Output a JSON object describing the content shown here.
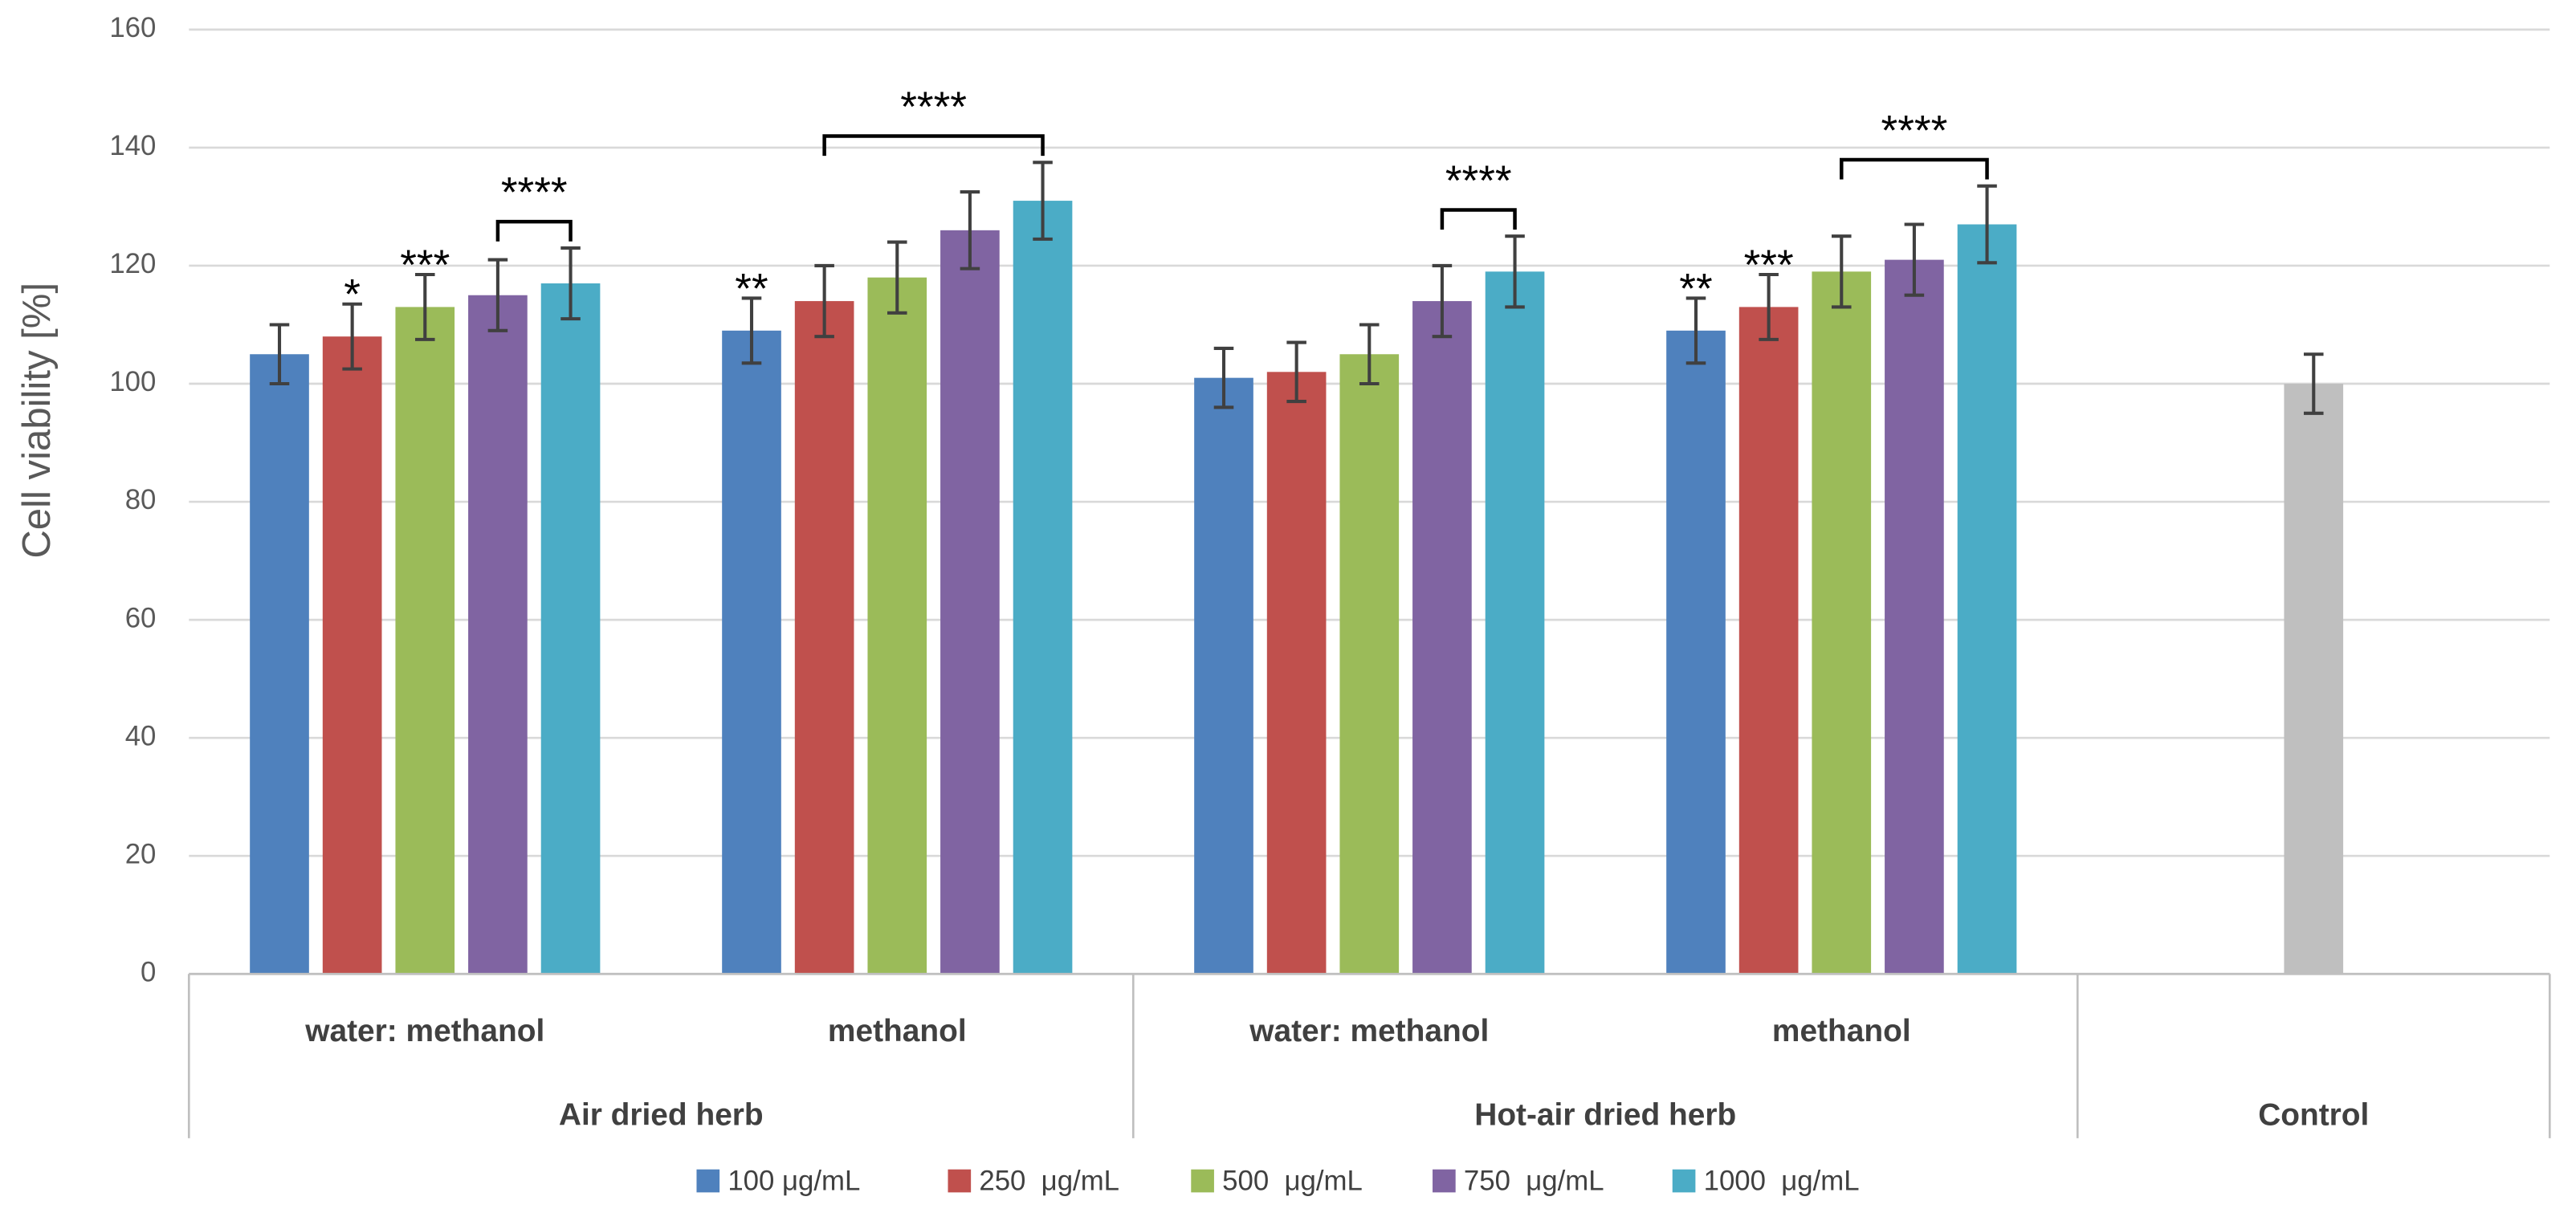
{
  "chart_data": {
    "type": "bar",
    "y_label": "Cell viability [%]",
    "categories": [
      "water: methanol",
      "methanol",
      "water: methanol",
      "methanol",
      null
    ],
    "category_groups": [
      {
        "label": "Air dried herb",
        "span": 2
      },
      {
        "label": "Hot-air dried herb",
        "span": 2
      },
      {
        "label": "Control",
        "span": 1
      }
    ],
    "series": [
      {
        "name": "100 μg/mL",
        "color": "#4f81bd",
        "values": [
          105,
          109,
          101,
          109,
          null
        ],
        "errors": [
          5,
          5.5,
          5,
          5.5,
          null
        ]
      },
      {
        "name": "250  μg/mL",
        "color": "#c0504d",
        "values": [
          108,
          114,
          102,
          113,
          null
        ],
        "errors": [
          5.5,
          6,
          5,
          5.5,
          null
        ]
      },
      {
        "name": "500  μg/mL",
        "color": "#9bbb59",
        "values": [
          113,
          118,
          105,
          119,
          null
        ],
        "errors": [
          5.5,
          6,
          5,
          6,
          null
        ]
      },
      {
        "name": "750  μg/mL",
        "color": "#8064a2",
        "values": [
          115,
          126,
          114,
          121,
          null
        ],
        "errors": [
          6,
          6.5,
          6,
          6,
          null
        ]
      },
      {
        "name": "1000  μg/mL",
        "color": "#4bacc6",
        "values": [
          117,
          131,
          119,
          127,
          null
        ],
        "errors": [
          6,
          6.5,
          6,
          6.5,
          null
        ]
      }
    ],
    "control": {
      "color": "#bfbfbf",
      "value": 100,
      "error": 5
    },
    "annotations": [
      {
        "label": "*",
        "group": 0,
        "series": [
          1
        ]
      },
      {
        "label": "***",
        "group": 0,
        "series": [
          2
        ]
      },
      {
        "label": "****",
        "group": 0,
        "series": [
          3,
          4
        ]
      },
      {
        "label": "**",
        "group": 1,
        "series": [
          0
        ]
      },
      {
        "label": "****",
        "group": 1,
        "series": [
          1,
          4
        ]
      },
      {
        "label": "****",
        "group": 2,
        "series": [
          3,
          4
        ]
      },
      {
        "label": "**",
        "group": 3,
        "series": [
          0
        ]
      },
      {
        "label": "***",
        "group": 3,
        "series": [
          1
        ]
      },
      {
        "label": "****",
        "group": 3,
        "series": [
          2,
          4
        ]
      }
    ],
    "ylim": [
      0,
      160
    ],
    "yticks": [
      0,
      20,
      40,
      60,
      80,
      100,
      120,
      140,
      160
    ],
    "grid": true
  }
}
